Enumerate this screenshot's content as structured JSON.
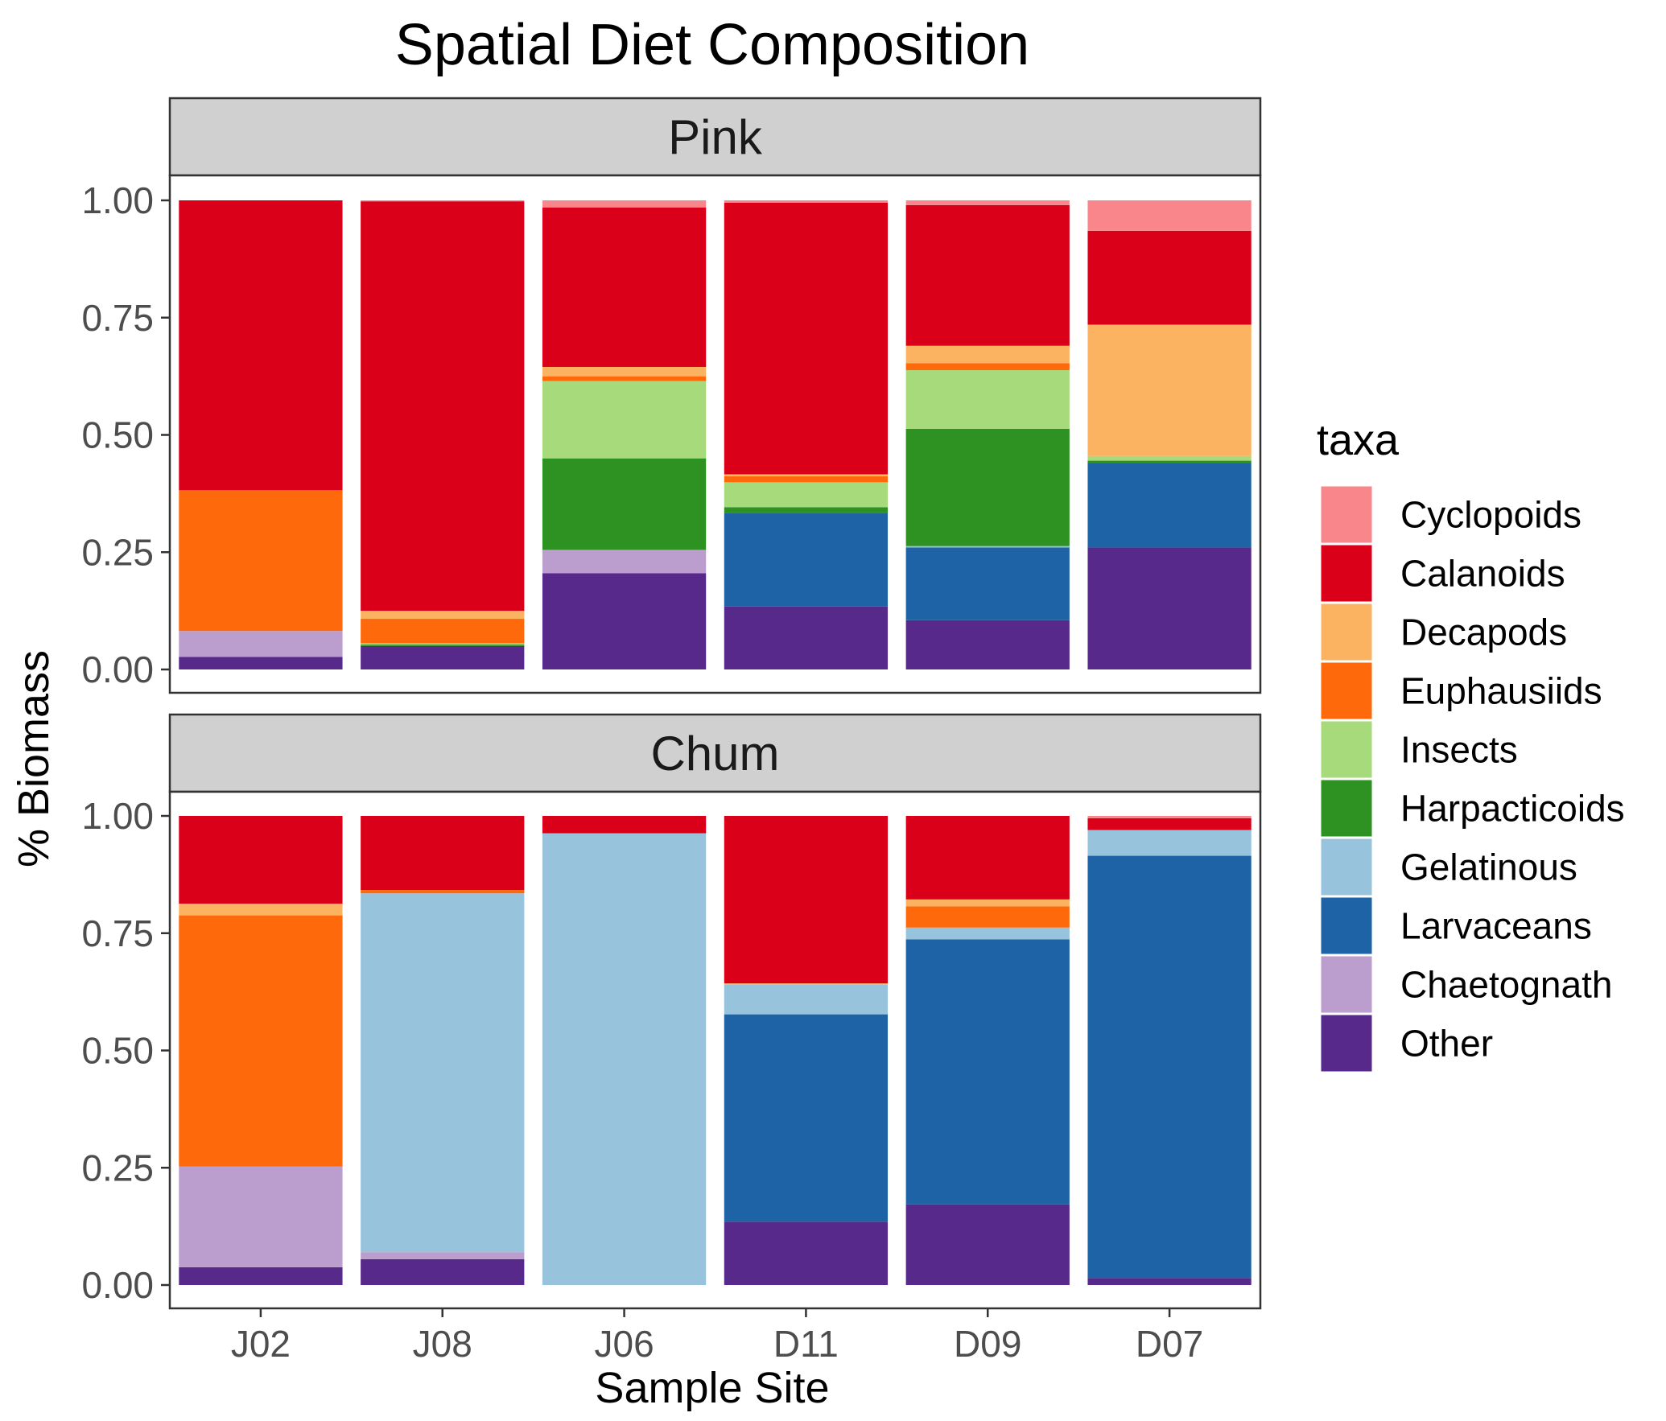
{
  "chart_data": {
    "type": "bar",
    "stacked": true,
    "title": "Spatial Diet Composition",
    "xlabel": "Sample Site",
    "ylabel": "% Biomass",
    "ylim": [
      0,
      1
    ],
    "yticks": [
      "0.00",
      "0.25",
      "0.50",
      "0.75",
      "1.00"
    ],
    "categories": [
      "J02",
      "J08",
      "J06",
      "D11",
      "D09",
      "D07"
    ],
    "legend": {
      "title": "taxa",
      "position": "right",
      "items": [
        {
          "name": "Cyclopoids",
          "color": "#f8868b"
        },
        {
          "name": "Calanoids",
          "color": "#da0019"
        },
        {
          "name": "Decapods",
          "color": "#fbb261"
        },
        {
          "name": "Euphausiids",
          "color": "#fd690b"
        },
        {
          "name": "Insects",
          "color": "#a6da7a"
        },
        {
          "name": "Harpacticoids",
          "color": "#2d9222"
        },
        {
          "name": "Gelatinous",
          "color": "#98c3dd"
        },
        {
          "name": "Larvaceans",
          "color": "#1e63a6"
        },
        {
          "name": "Chaetognath",
          "color": "#bb9ecd"
        },
        {
          "name": "Other",
          "color": "#56298b"
        }
      ]
    },
    "stack_order": [
      "Other",
      "Chaetognath",
      "Larvaceans",
      "Gelatinous",
      "Harpacticoids",
      "Insects",
      "Euphausiids",
      "Decapods",
      "Calanoids",
      "Cyclopoids"
    ],
    "facets": [
      {
        "label": "Pink",
        "series": [
          {
            "name": "Other",
            "values": [
              0.027,
              0.05,
              0.205,
              0.134,
              0.105,
              0.26
            ]
          },
          {
            "name": "Chaetognath",
            "values": [
              0.055,
              0.0,
              0.05,
              0.0,
              0.0,
              0.0
            ]
          },
          {
            "name": "Larvaceans",
            "values": [
              0.0,
              0.0,
              0.0,
              0.2,
              0.155,
              0.18
            ]
          },
          {
            "name": "Gelatinous",
            "values": [
              0.0,
              0.0,
              0.0,
              0.0,
              0.003,
              0.0
            ]
          },
          {
            "name": "Harpacticoids",
            "values": [
              0.0,
              0.003,
              0.195,
              0.012,
              0.25,
              0.005
            ]
          },
          {
            "name": "Insects",
            "values": [
              0.0,
              0.003,
              0.165,
              0.053,
              0.125,
              0.01
            ]
          },
          {
            "name": "Euphausiids",
            "values": [
              0.3,
              0.052,
              0.01,
              0.013,
              0.015,
              0.0
            ]
          },
          {
            "name": "Decapods",
            "values": [
              0.0,
              0.017,
              0.02,
              0.004,
              0.037,
              0.28
            ]
          },
          {
            "name": "Calanoids",
            "values": [
              0.618,
              0.873,
              0.34,
              0.579,
              0.3,
              0.2
            ]
          },
          {
            "name": "Cyclopoids",
            "values": [
              0.0,
              0.002,
              0.015,
              0.005,
              0.01,
              0.065
            ]
          }
        ]
      },
      {
        "label": "Chum",
        "series": [
          {
            "name": "Other",
            "values": [
              0.038,
              0.055,
              0.0,
              0.135,
              0.172,
              0.015
            ]
          },
          {
            "name": "Chaetognath",
            "values": [
              0.215,
              0.015,
              0.0,
              0.0,
              0.0,
              0.0
            ]
          },
          {
            "name": "Larvaceans",
            "values": [
              0.0,
              0.0,
              0.0,
              0.442,
              0.565,
              0.9
            ]
          },
          {
            "name": "Gelatinous",
            "values": [
              0.0,
              0.765,
              0.963,
              0.063,
              0.025,
              0.055
            ]
          },
          {
            "name": "Harpacticoids",
            "values": [
              0.0,
              0.0,
              0.0,
              0.0,
              0.0,
              0.0
            ]
          },
          {
            "name": "Insects",
            "values": [
              0.0,
              0.0,
              0.0,
              0.0,
              0.0,
              0.0
            ]
          },
          {
            "name": "Euphausiids",
            "values": [
              0.535,
              0.007,
              0.0,
              0.0,
              0.045,
              0.0
            ]
          },
          {
            "name": "Decapods",
            "values": [
              0.025,
              0.0,
              0.0,
              0.003,
              0.015,
              0.0
            ]
          },
          {
            "name": "Calanoids",
            "values": [
              0.187,
              0.158,
              0.037,
              0.357,
              0.178,
              0.025
            ]
          },
          {
            "name": "Cyclopoids",
            "values": [
              0.0,
              0.0,
              0.0,
              0.0,
              0.0,
              0.005
            ]
          }
        ]
      }
    ]
  }
}
